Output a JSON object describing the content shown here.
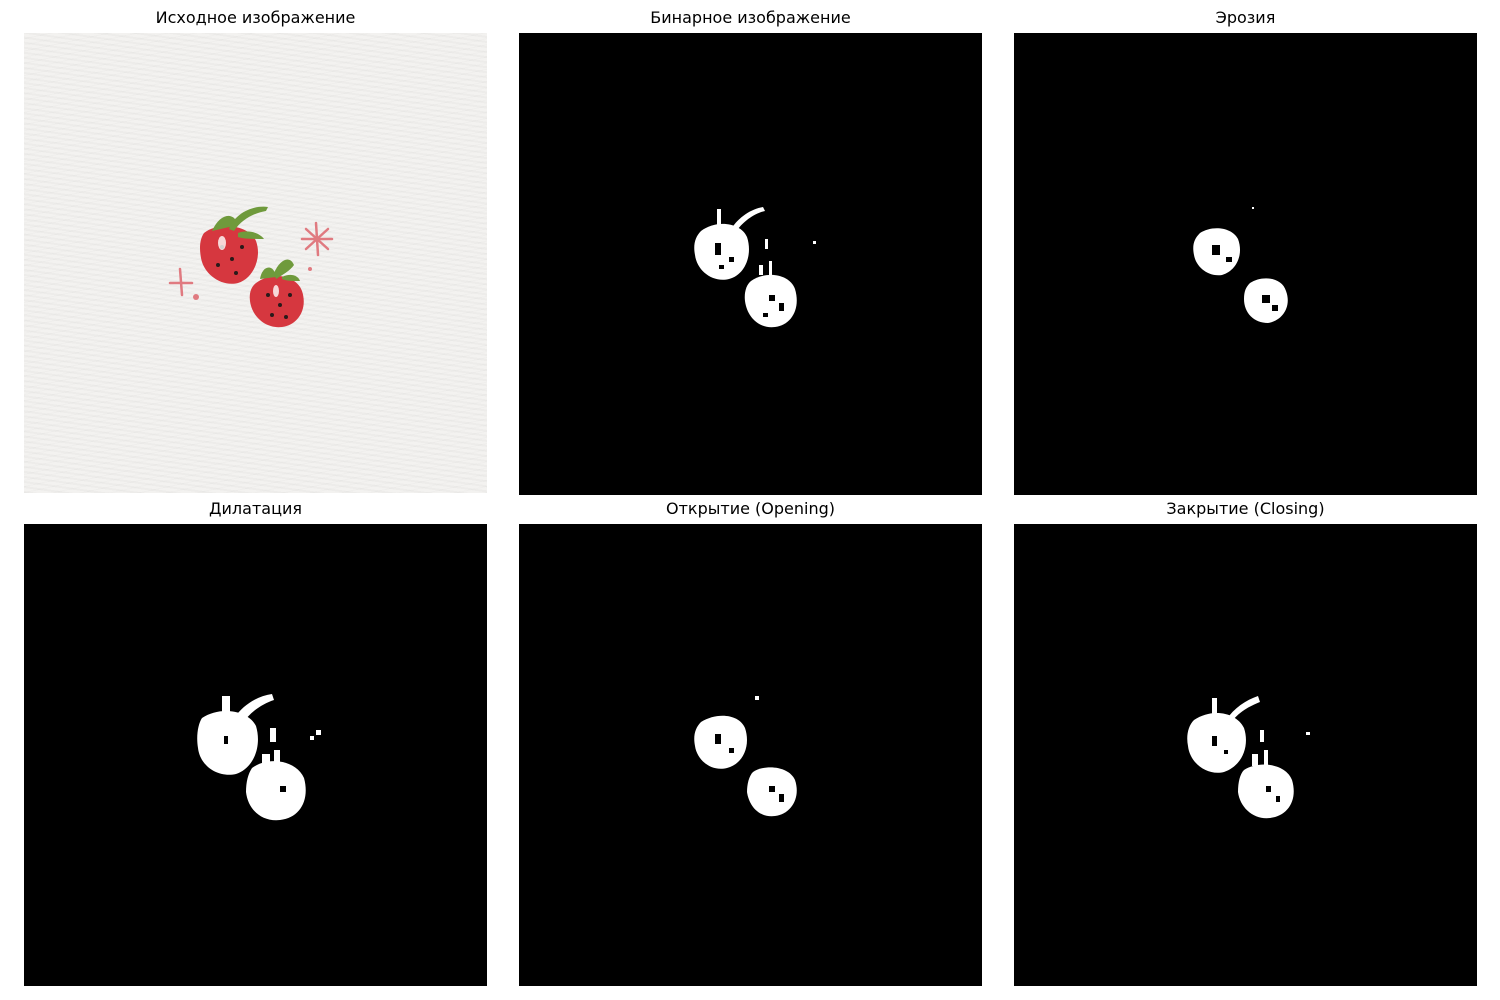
{
  "figure": {
    "panels": [
      {
        "title": "Исходное изображение",
        "kind": "original"
      },
      {
        "title": "Бинарное изображение",
        "kind": "binary"
      },
      {
        "title": "Эрозия",
        "kind": "erosion"
      },
      {
        "title": "Дилатация",
        "kind": "dilation"
      },
      {
        "title": "Открытие (Opening)",
        "kind": "opening"
      },
      {
        "title": "Закрытие (Closing)",
        "kind": "closing"
      }
    ]
  },
  "colors": {
    "background": "#ffffff",
    "paper": "#f3f2f0",
    "strawberry": "#d6373f",
    "leaf": "#6f9a3c",
    "sparkle": "#e07a80",
    "mask_foreground": "#ffffff",
    "mask_background": "#000000"
  }
}
